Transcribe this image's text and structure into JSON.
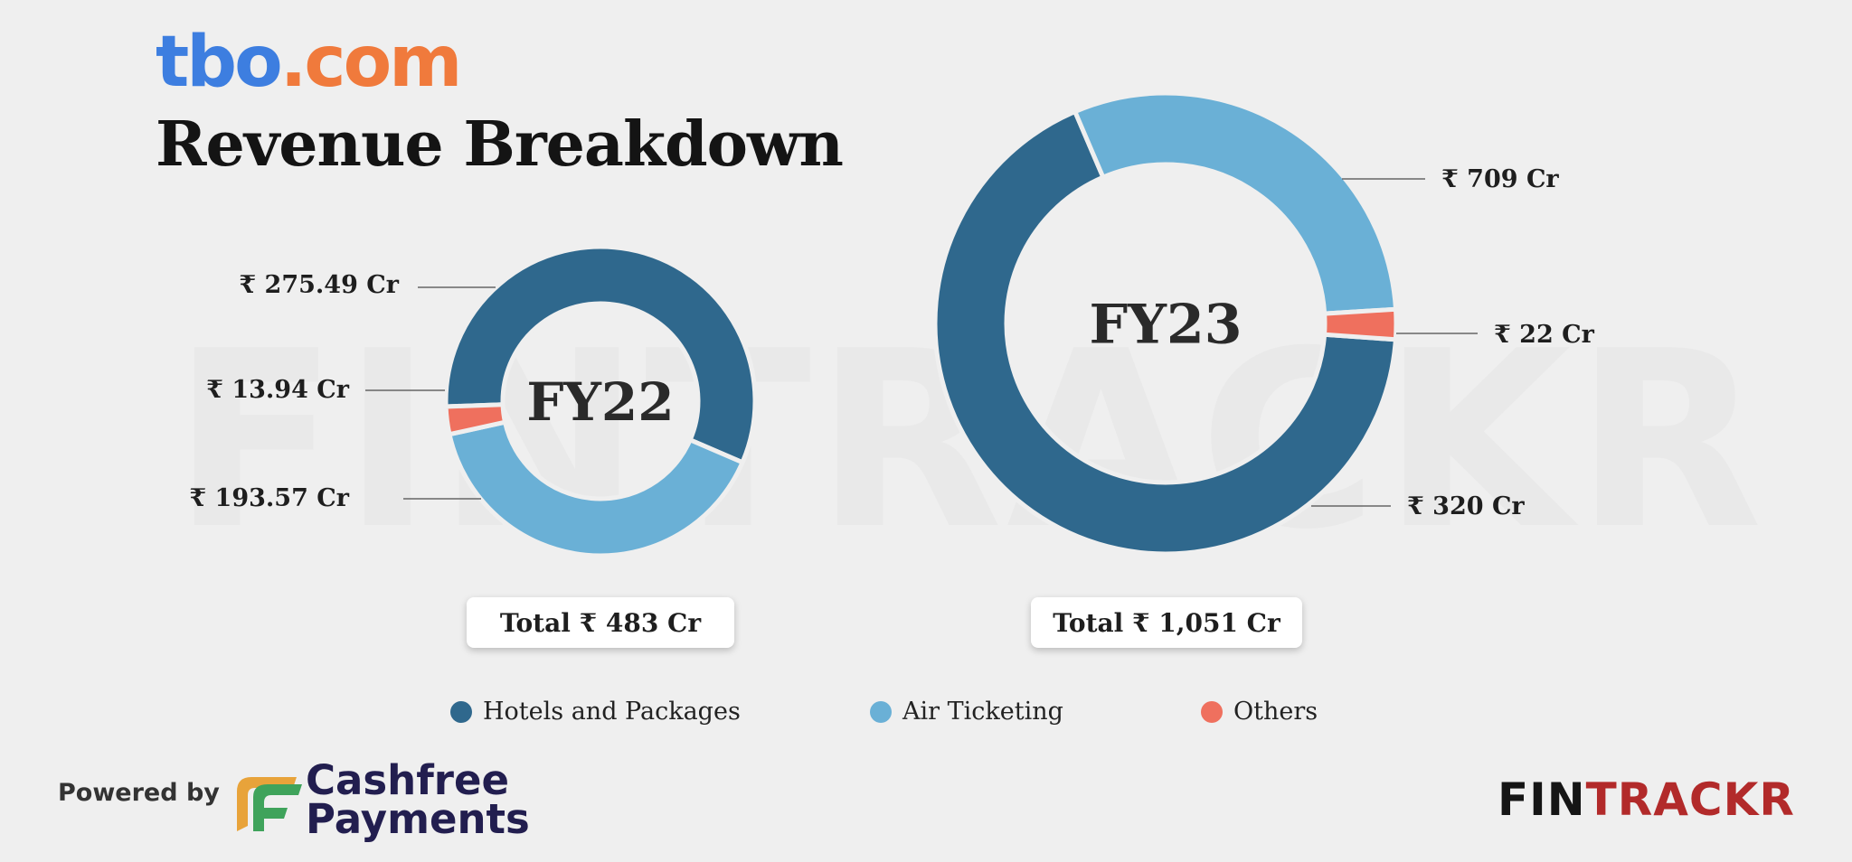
{
  "header": {
    "brand_part1": "tbo",
    "brand_part2": ".com",
    "title": "Revenue Breakdown"
  },
  "watermark": "FINTRACKR",
  "colors": {
    "hotels": "#2f688d",
    "air": "#6ab0d6",
    "others": "#ef705e"
  },
  "chart_data": [
    {
      "type": "pie",
      "style": "donut",
      "center_label": "FY22",
      "slices": [
        {
          "name": "Hotels and Packages",
          "value": 275.49,
          "label": "₹ 275.49 Cr",
          "color": "#2f688d"
        },
        {
          "name": "Air Ticketing",
          "value": 193.57,
          "label": "₹ 193.57 Cr",
          "color": "#6ab0d6"
        },
        {
          "name": "Others",
          "value": 13.94,
          "label": "₹ 13.94 Cr",
          "color": "#ef705e"
        }
      ],
      "total_label": "Total ₹ 483 Cr"
    },
    {
      "type": "pie",
      "style": "donut",
      "center_label": "FY23",
      "slices": [
        {
          "name": "Hotels and Packages",
          "value": 709,
          "label": "₹ 709 Cr",
          "color": "#2f688d"
        },
        {
          "name": "Air Ticketing",
          "value": 320,
          "label": "₹ 320 Cr",
          "color": "#6ab0d6"
        },
        {
          "name": "Others",
          "value": 22,
          "label": "₹ 22 Cr",
          "color": "#ef705e"
        }
      ],
      "total_label": "Total ₹ 1,051 Cr"
    }
  ],
  "legend": [
    {
      "label": "Hotels and Packages",
      "color": "#2f688d"
    },
    {
      "label": "Air Ticketing",
      "color": "#6ab0d6"
    },
    {
      "label": "Others",
      "color": "#ef705e"
    }
  ],
  "footer": {
    "powered_by": "Powered by",
    "cashfree_line1": "Cashfree",
    "cashfree_line2": "Payments",
    "fintrackr_part1": "FIN",
    "fintrackr_part2": "TRACKR"
  }
}
